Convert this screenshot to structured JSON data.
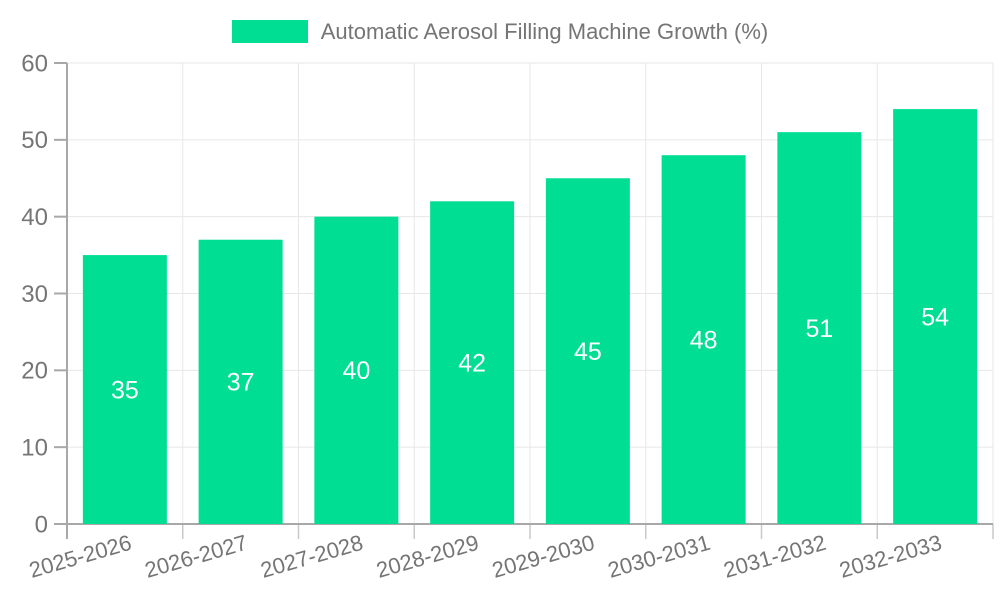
{
  "chart_data": {
    "type": "bar",
    "title": "Automatic Aerosol Filling Machine Growth (%)",
    "categories": [
      "2025-2026",
      "2026-2027",
      "2027-2028",
      "2028-2029",
      "2029-2030",
      "2030-2031",
      "2031-2032",
      "2032-2033"
    ],
    "values": [
      35,
      37,
      40,
      42,
      45,
      48,
      51,
      54
    ],
    "xlabel": "",
    "ylabel": "",
    "ylim": [
      0,
      60
    ],
    "ytick_step": 10,
    "yticks": [
      0,
      10,
      20,
      30,
      40,
      50,
      60
    ],
    "grid": true,
    "legend_position": "top",
    "bar_color": "#00DE94",
    "value_label_color": "#FFFFFF",
    "axis_text_color": "#757575",
    "grid_color": "#E7E7E7",
    "axis_line_color": "#A8A8A8",
    "minor_tick_color": "#C9C9C9"
  }
}
